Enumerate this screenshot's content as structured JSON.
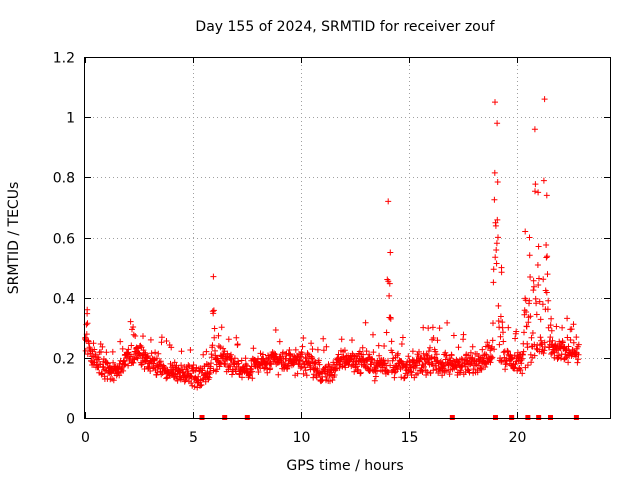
{
  "chart_data": {
    "type": "scatter",
    "title": "Day 155 of 2024, SRMTID for receiver zouf",
    "xlabel": "GPS time / hours",
    "ylabel": "SRMTID / TECUs",
    "xlim": [
      0,
      24.33
    ],
    "ylim": [
      0,
      1.2
    ],
    "x_ticks": [
      0,
      5,
      10,
      15,
      20
    ],
    "x_tick_labels": [
      "0",
      "5",
      "10",
      "15",
      "20"
    ],
    "y_ticks": [
      0,
      0.2,
      0.4,
      0.6,
      0.8,
      1.0,
      1.2
    ],
    "y_tick_labels": [
      "0",
      "0.2",
      "0.4",
      "0.6",
      "0.8",
      "1",
      "1.2"
    ],
    "grid": true,
    "marker": "+",
    "color": "#ff0000",
    "series": [
      {
        "name": "SRMTID",
        "baseline": [
          [
            0.0,
            0.25
          ],
          [
            0.3,
            0.2
          ],
          [
            0.8,
            0.16
          ],
          [
            1.5,
            0.16
          ],
          [
            2.0,
            0.2
          ],
          [
            2.5,
            0.21
          ],
          [
            3.0,
            0.18
          ],
          [
            3.5,
            0.17
          ],
          [
            4.0,
            0.15
          ],
          [
            4.5,
            0.15
          ],
          [
            5.0,
            0.15
          ],
          [
            5.5,
            0.14
          ],
          [
            6.0,
            0.18
          ],
          [
            6.5,
            0.2
          ],
          [
            7.0,
            0.17
          ],
          [
            7.5,
            0.16
          ],
          [
            8.0,
            0.18
          ],
          [
            9.0,
            0.19
          ],
          [
            10.0,
            0.19
          ],
          [
            10.5,
            0.17
          ],
          [
            11.0,
            0.14
          ],
          [
            11.5,
            0.16
          ],
          [
            12.0,
            0.2
          ],
          [
            12.5,
            0.19
          ],
          [
            13.0,
            0.19
          ],
          [
            13.5,
            0.17
          ],
          [
            14.0,
            0.17
          ],
          [
            14.5,
            0.18
          ],
          [
            15.0,
            0.16
          ],
          [
            15.5,
            0.18
          ],
          [
            16.0,
            0.19
          ],
          [
            16.5,
            0.18
          ],
          [
            17.0,
            0.18
          ],
          [
            17.5,
            0.17
          ],
          [
            18.0,
            0.18
          ],
          [
            18.5,
            0.2
          ],
          [
            19.0,
            0.22
          ],
          [
            19.5,
            0.2
          ],
          [
            20.0,
            0.18
          ],
          [
            20.5,
            0.2
          ],
          [
            21.0,
            0.24
          ],
          [
            21.5,
            0.22
          ],
          [
            22.0,
            0.22
          ],
          [
            22.5,
            0.23
          ],
          [
            22.9,
            0.22
          ]
        ],
        "spikes": [
          {
            "x": 0.1,
            "y": 0.36
          },
          {
            "x": 5.95,
            "y": 0.47
          },
          {
            "x": 14.05,
            "y": 0.72
          },
          {
            "x": 14.15,
            "y": 0.55
          },
          {
            "x": 19.0,
            "y": 1.05
          },
          {
            "x": 19.1,
            "y": 0.98
          },
          {
            "x": 19.3,
            "y": 0.5
          },
          {
            "x": 20.4,
            "y": 0.62
          },
          {
            "x": 20.6,
            "y": 0.6
          },
          {
            "x": 20.85,
            "y": 0.96
          },
          {
            "x": 21.0,
            "y": 0.75
          },
          {
            "x": 21.3,
            "y": 1.06
          },
          {
            "x": 21.4,
            "y": 0.74
          },
          {
            "x": 21.6,
            "y": 0.33
          }
        ],
        "x_end": 22.9
      }
    ],
    "data_gaps_x": [
      5.4,
      6.45,
      7.5,
      17.0,
      19.0,
      19.75,
      20.5,
      21.0,
      21.55,
      22.75
    ]
  }
}
